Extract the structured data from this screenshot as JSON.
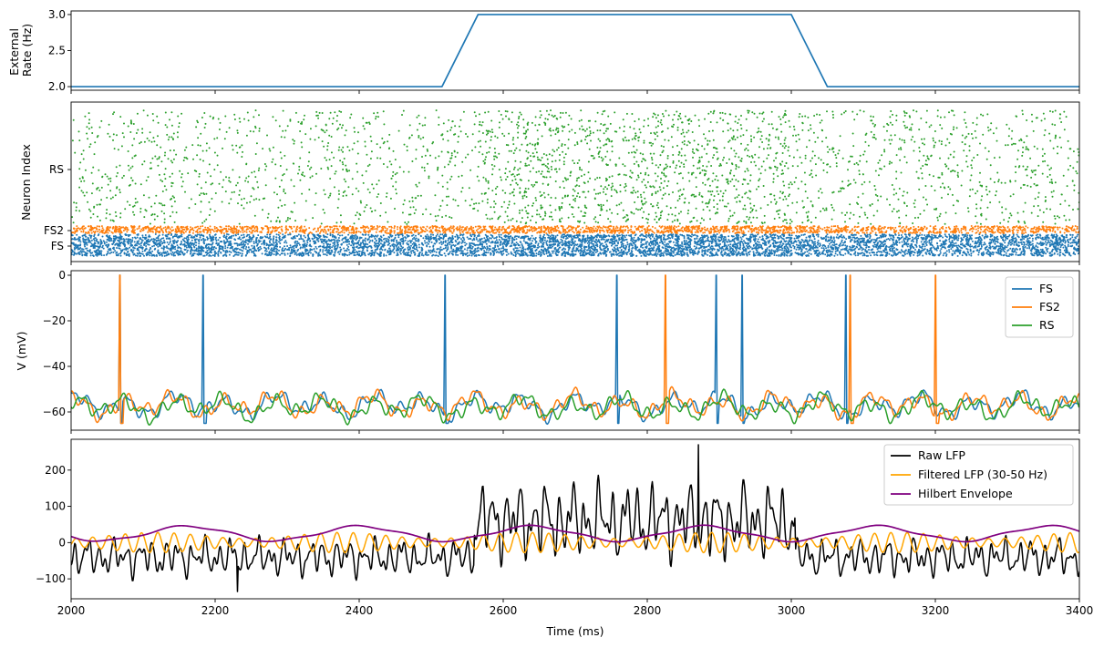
{
  "chart_data": [
    {
      "type": "line",
      "ylabel_lines": [
        "External",
        "Rate (Hz)"
      ],
      "xlim": [
        2000,
        3400
      ],
      "ylim": [
        1.95,
        3.05
      ],
      "yticks": [
        2.0,
        2.5,
        3.0
      ],
      "ytick_labels": [
        "2.0",
        "2.5",
        "3.0"
      ],
      "series": [
        {
          "color": "#1f77b4",
          "x": [
            2000,
            2515,
            2565,
            3000,
            3050,
            3400
          ],
          "y": [
            2.0,
            2.0,
            3.0,
            3.0,
            2.0,
            2.0
          ]
        }
      ]
    },
    {
      "type": "scatter",
      "ylabel": "Neuron Index",
      "xlim": [
        2000,
        3400
      ],
      "ytick_labels": [
        "FS",
        "FS2",
        "RS"
      ],
      "groups": [
        {
          "name": "FS",
          "color": "#1f77b4",
          "density": 1.0,
          "burst_window": [
            2560,
            3000
          ]
        },
        {
          "name": "FS2",
          "color": "#ff7f0e",
          "density": 1.0,
          "burst_window": [
            2560,
            3000
          ]
        },
        {
          "name": "RS",
          "color": "#2ca02c",
          "density": 0.45,
          "burst_window": [
            2565,
            3000
          ]
        }
      ]
    },
    {
      "type": "line",
      "ylabel": "V (mV)",
      "xlim": [
        2000,
        3400
      ],
      "ylim": [
        -68,
        2
      ],
      "yticks": [
        -60,
        -40,
        -20,
        0
      ],
      "ytick_labels": [
        "−60",
        "−40",
        "−20",
        "0"
      ],
      "legend": "upper right",
      "series": [
        {
          "name": "FS",
          "color": "#1f77b4",
          "baseline": -57,
          "spikes": [
            2067,
            2183,
            2519,
            2757,
            2895,
            2931,
            3075
          ]
        },
        {
          "name": "FS2",
          "color": "#ff7f0e",
          "baseline": -57,
          "spikes": [
            2068,
            2825,
            3082,
            3200
          ]
        },
        {
          "name": "RS",
          "color": "#2ca02c",
          "baseline": -58,
          "spikes": []
        }
      ]
    },
    {
      "type": "line",
      "xlabel": "Time (ms)",
      "xlim": [
        2000,
        3400
      ],
      "ylim": [
        -155,
        285
      ],
      "xticks": [
        2000,
        2200,
        2400,
        2600,
        2800,
        3000,
        3200,
        3400
      ],
      "xtick_labels": [
        "2000",
        "2200",
        "2400",
        "2600",
        "2800",
        "3000",
        "3200",
        "3400"
      ],
      "yticks": [
        -100,
        0,
        100,
        200
      ],
      "ytick_labels": [
        "−100",
        "0",
        "100",
        "200"
      ],
      "legend": "upper right",
      "series": [
        {
          "name": "Raw LFP",
          "color": "#000000",
          "baseline": -40,
          "amplitude": 55,
          "burst_window": [
            2560,
            3005
          ],
          "burst_baseline": 60,
          "burst_amplitude": 110,
          "max": 270,
          "min": -135
        },
        {
          "name": "Filtered LFP (30-50 Hz)",
          "color": "#ffa500",
          "amplitude": 28
        },
        {
          "name": "Hilbert Envelope",
          "color": "#800080",
          "range": [
            5,
            45
          ]
        }
      ]
    }
  ]
}
